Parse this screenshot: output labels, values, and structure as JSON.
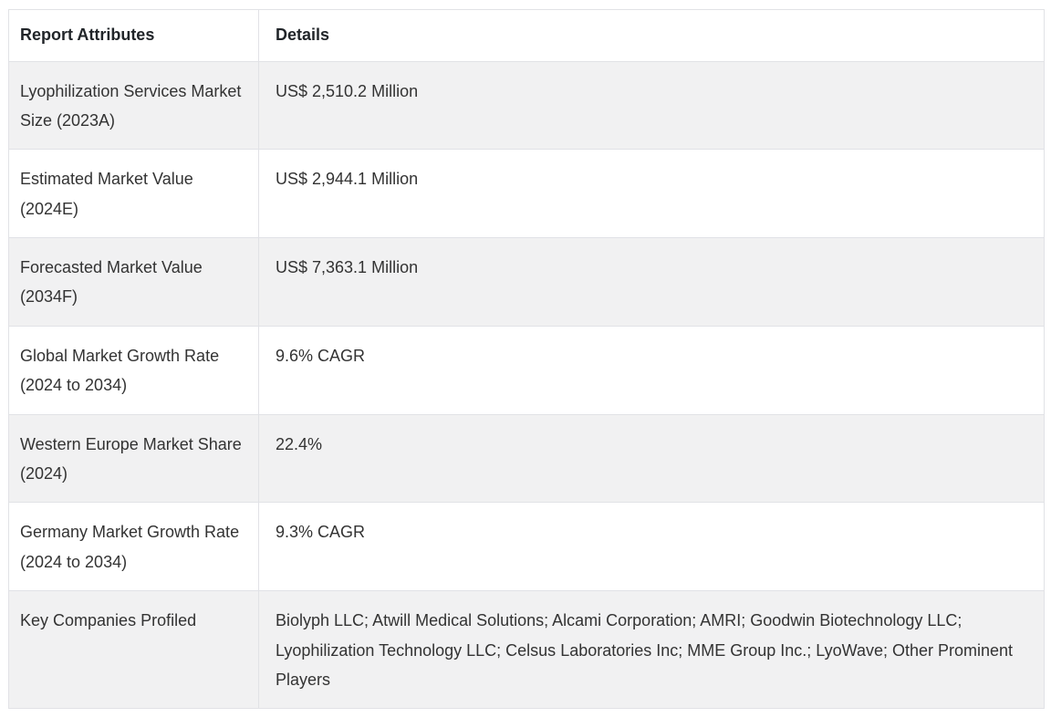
{
  "chart_data": {
    "type": "table",
    "columns": [
      "Report Attributes",
      "Details"
    ],
    "rows": [
      {
        "attribute": "Lyophilization Services Market Size (2023A)",
        "detail": "US$ 2,510.2 Million"
      },
      {
        "attribute": "Estimated Market Value (2024E)",
        "detail": "US$ 2,944.1 Million"
      },
      {
        "attribute": "Forecasted Market Value (2034F)",
        "detail": "US$ 7,363.1 Million"
      },
      {
        "attribute": "Global Market Growth Rate (2024 to 2034)",
        "detail": "9.6% CAGR"
      },
      {
        "attribute": "Western Europe Market Share (2024)",
        "detail": "22.4%"
      },
      {
        "attribute": "Germany Market Growth Rate (2024 to 2034)",
        "detail": "9.3% CAGR"
      },
      {
        "attribute": "Key Companies Profiled",
        "detail": "Biolyph LLC; Atwill Medical Solutions; Alcami Corporation; AMRI; Goodwin Biotechnology LLC; Lyophilization Technology LLC; Celsus Laboratories Inc; MME Group Inc.; LyoWave; Other Prominent Players"
      }
    ]
  },
  "colors": {
    "row_stripe": "#f1f1f2",
    "row_plain": "#ffffff",
    "border": "#e1e2e6",
    "header_text": "#212529",
    "body_text": "#333333"
  }
}
